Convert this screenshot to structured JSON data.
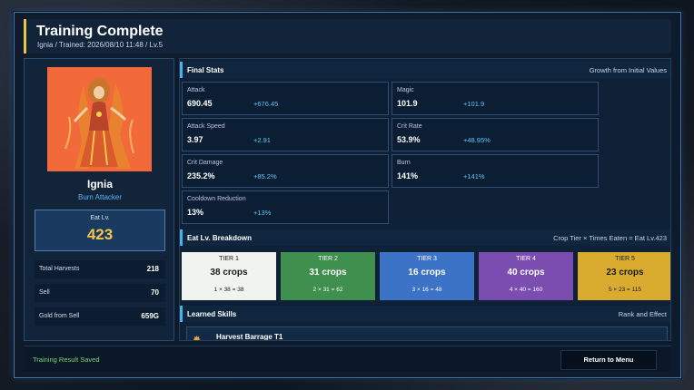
{
  "header": {
    "title": "Training Complete",
    "subtitle": "Ignia / Trained: 2026/08/10 11:48 / Lv.5"
  },
  "character": {
    "name": "Ignia",
    "role": "Burn Attacker",
    "eat_lv_label": "Eat Lv.",
    "eat_lv_value": "423",
    "portrait_bg": "#f26a3a"
  },
  "summary": [
    {
      "label": "Total Harvests",
      "value": "218"
    },
    {
      "label": "Sell",
      "value": "70"
    },
    {
      "label": "Gold from Sell",
      "value": "659G"
    }
  ],
  "final_stats": {
    "title": "Final Stats",
    "right_label": "Growth from Initial Values",
    "stats": [
      {
        "name": "Attack",
        "value": "690.45",
        "growth": "+676.45"
      },
      {
        "name": "Magic",
        "value": "101.9",
        "growth": "+101.9"
      },
      {
        "name": "Attack Speed",
        "value": "3.97",
        "growth": "+2.91"
      },
      {
        "name": "Crit Rate",
        "value": "53.9%",
        "growth": "+48.95%"
      },
      {
        "name": "Crit Damage",
        "value": "235.2%",
        "growth": "+85.2%"
      },
      {
        "name": "Burn",
        "value": "141%",
        "growth": "+141%"
      },
      {
        "name": "Cooldown Reduction",
        "value": "13%",
        "growth": "+13%"
      }
    ]
  },
  "eat_breakdown": {
    "title": "Eat Lv. Breakdown",
    "right_label": "Crop Tier × Times Eaten = Eat Lv.423",
    "tiers": [
      {
        "tier": "TIER 1",
        "crops": "38 crops",
        "formula": "1 × 38 = 38",
        "bg": "#f1f3ee",
        "fg": "#1a1a1a"
      },
      {
        "tier": "TIER 2",
        "crops": "31 crops",
        "formula": "2 × 31 = 62",
        "bg": "#3f8f4e",
        "fg": "#ffffff"
      },
      {
        "tier": "TIER 3",
        "crops": "16 crops",
        "formula": "3 × 16 = 48",
        "bg": "#3c73c6",
        "fg": "#ffffff"
      },
      {
        "tier": "TIER 4",
        "crops": "40 crops",
        "formula": "4 × 40 = 160",
        "bg": "#7b4db0",
        "fg": "#ffffff"
      },
      {
        "tier": "TIER 5",
        "crops": "23 crops",
        "formula": "5 × 23 = 115",
        "bg": "#d9ac2f",
        "fg": "#1a1a1a"
      }
    ]
  },
  "skills": {
    "title": "Learned Skills",
    "right_label": "Rank and Effect",
    "items": [
      {
        "name": "Harvest Barrage  T1",
        "icon": "burst-icon"
      }
    ]
  },
  "footer": {
    "saved_text": "Training Result Saved",
    "return_button": "Return to Menu"
  }
}
